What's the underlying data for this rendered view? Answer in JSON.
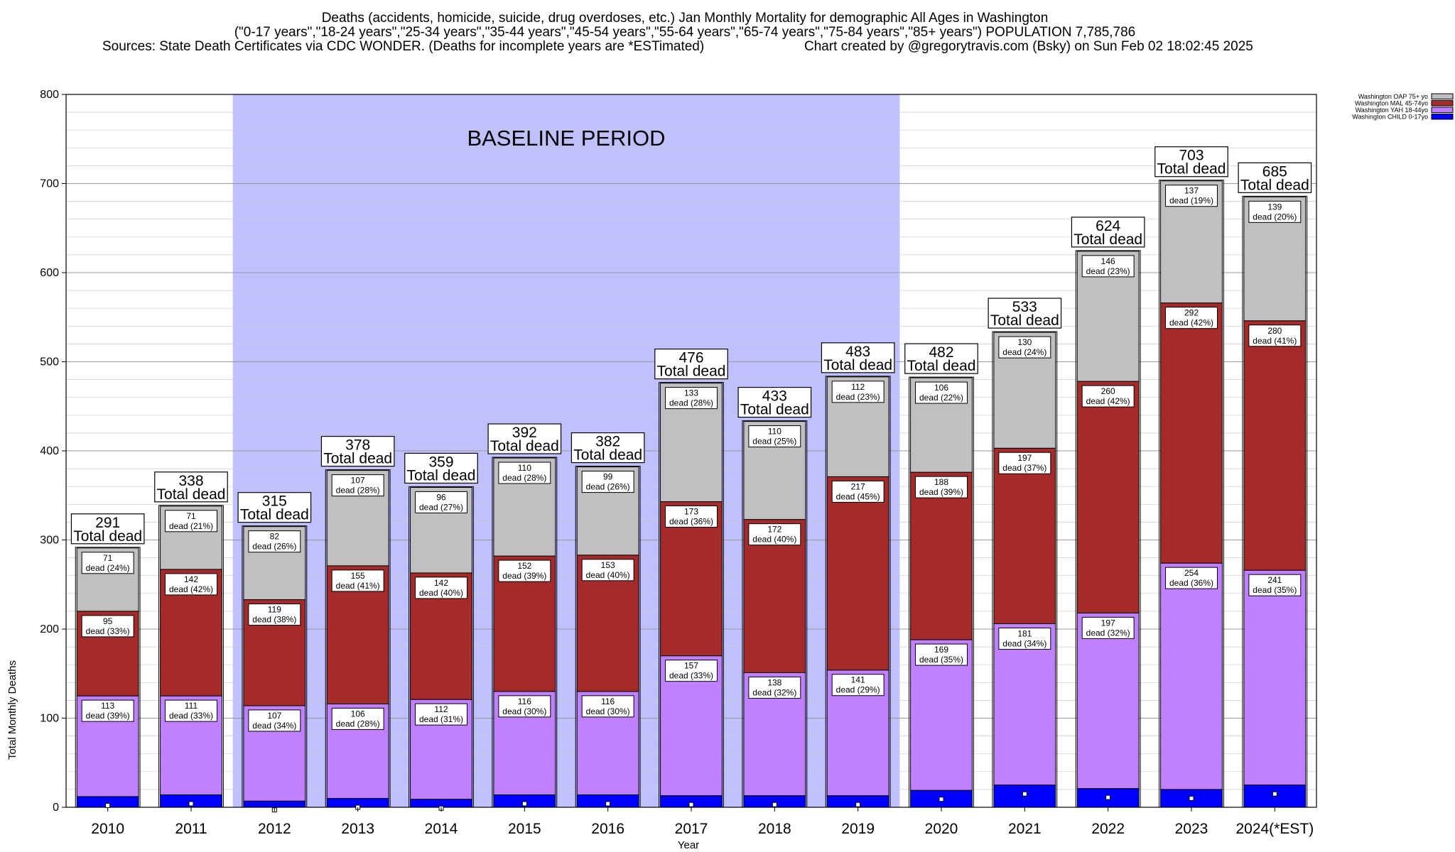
{
  "header": {
    "line1": "Deaths (accidents, homicide, suicide, drug overdoses, etc.) Jan Monthly Mortality for demographic All Ages in Washington",
    "line2": "(\"0-17 years\",\"18-24 years\",\"25-34 years\",\"35-44 years\",\"45-54 years\",\"55-64 years\",\"65-74 years\",\"75-84 years\",\"85+ years\") POPULATION 7,785,786",
    "line3_left": "Sources: State Death Certificates via CDC WONDER. (Deaths for incomplete years are *ESTimated)",
    "line3_right": "Chart created by @gregorytravis.com (Bsky) on Sun Feb 02 18:02:45 2025"
  },
  "chart_data": {
    "type": "bar",
    "stacked": true,
    "xlabel": "Year",
    "ylabel": "Total Monthly Deaths",
    "ylim": [
      0,
      800
    ],
    "y_ticks": [
      0,
      100,
      200,
      300,
      400,
      500,
      600,
      700,
      800
    ],
    "grid": true,
    "legend_position": "top-right",
    "categories": [
      "2010",
      "2011",
      "2012",
      "2013",
      "2014",
      "2015",
      "2016",
      "2017",
      "2018",
      "2019",
      "2020",
      "2021",
      "2022",
      "2023",
      "2024(*EST)"
    ],
    "series": [
      {
        "name": "Washington CHILD 0-17yo",
        "color": "#0000ff",
        "values": [
          12,
          14,
          7,
          10,
          9,
          14,
          14,
          13,
          13,
          13,
          19,
          25,
          21,
          20,
          25
        ],
        "labels": []
      },
      {
        "name": "Washington YAH 18-44yo",
        "color": "#c080ff",
        "values": [
          113,
          111,
          107,
          106,
          112,
          116,
          116,
          157,
          138,
          141,
          169,
          181,
          197,
          254,
          241
        ],
        "labels": [
          "113\ndead (39%)",
          "111\ndead (33%)",
          "107\ndead (34%)",
          "106\ndead (28%)",
          "112\ndead (31%)",
          "116\ndead (30%)",
          "116\ndead (30%)",
          "157\ndead (33%)",
          "138\ndead (32%)",
          "141\ndead (29%)",
          "169\ndead (35%)",
          "181\ndead (34%)",
          "197\ndead (32%)",
          "254\ndead (36%)",
          "241\ndead (35%)"
        ]
      },
      {
        "name": "Washington MAL 45-74yo",
        "color": "#a52a2a",
        "values": [
          95,
          142,
          119,
          155,
          142,
          152,
          153,
          173,
          172,
          217,
          188,
          197,
          260,
          292,
          280
        ],
        "labels": [
          "95\ndead (33%)",
          "142\ndead (42%)",
          "119\ndead (38%)",
          "155\ndead (41%)",
          "142\ndead (40%)",
          "152\ndead (39%)",
          "153\ndead (40%)",
          "173\ndead (36%)",
          "172\ndead (40%)",
          "217\ndead (45%)",
          "188\ndead (39%)",
          "197\ndead (37%)",
          "260\ndead (42%)",
          "292\ndead (42%)",
          "280\ndead (41%)"
        ]
      },
      {
        "name": "Washington OAP 75+ yo",
        "color": "#c0c0c0",
        "values": [
          71,
          71,
          82,
          107,
          96,
          110,
          99,
          133,
          110,
          112,
          106,
          130,
          146,
          137,
          139
        ],
        "labels": [
          "71\ndead (24%)",
          "71\ndead (21%)",
          "82\ndead (26%)",
          "107\ndead (28%)",
          "96\ndead (27%)",
          "110\ndead (28%)",
          "99\ndead (26%)",
          "133\ndead (28%)",
          "110\ndead (25%)",
          "112\ndead (23%)",
          "106\ndead (22%)",
          "130\ndead (24%)",
          "146\ndead (23%)",
          "137\ndead (19%)",
          "139\ndead (20%)"
        ]
      }
    ],
    "child_markers": [
      2,
      4,
      -3,
      0,
      -1,
      4,
      4,
      3,
      3,
      3,
      9,
      15,
      11,
      10,
      15
    ],
    "totals": [
      291,
      338,
      315,
      378,
      359,
      392,
      382,
      476,
      433,
      483,
      482,
      533,
      624,
      703,
      685
    ],
    "total_suffix": "Total dead",
    "baseline": {
      "label": "BASELINE PERIOD",
      "from": "2012",
      "to": "2019",
      "color": "#c0c0ff"
    }
  }
}
